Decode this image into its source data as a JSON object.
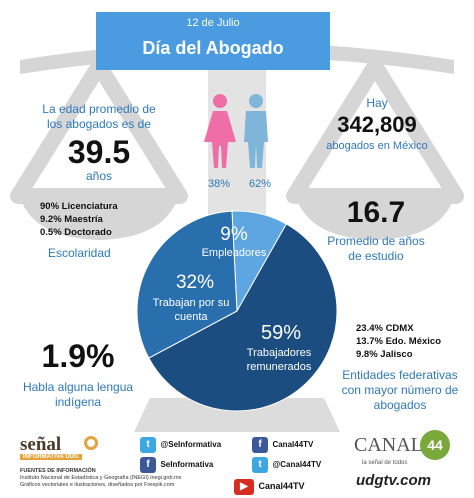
{
  "header": {
    "date": "12 de Julio",
    "title": "Día del Abogado"
  },
  "left_stat": {
    "intro": "La edad promedio de los abogados es de",
    "value": "39.5",
    "unit": "años"
  },
  "right_stat": {
    "intro": "Hay",
    "value": "342,809",
    "unit": "abogados en México"
  },
  "gender": {
    "female_pct": "38%",
    "male_pct": "62%",
    "female_color": "#ef6ea8",
    "male_color": "#7fb5d8"
  },
  "education": {
    "lines": [
      "90% Licenciatura",
      "9.2% Maestría",
      "0.5% Doctorado"
    ],
    "caption": "Escolaridad"
  },
  "study_years": {
    "value": "16.7",
    "caption_line1": "Promedio de años",
    "caption_line2": "de estudio"
  },
  "pie": {
    "slices": [
      {
        "pct": "9%",
        "label": "Empleadores",
        "value": 9,
        "color": "#5ea6e2"
      },
      {
        "pct": "32%",
        "label": "Trabajan por su cuenta",
        "value": 32,
        "color": "#2a6fad"
      },
      {
        "pct": "59%",
        "label": "Trabajadores remunerados",
        "value": 59,
        "color": "#1c4d80"
      }
    ]
  },
  "states": {
    "lines": [
      "23.4% CDMX",
      "13.7% Edo. México",
      "9.8% Jalisco"
    ],
    "caption": "Entidades federativas con mayor número de abogados"
  },
  "indigenous": {
    "value": "1.9%",
    "caption": "Habla alguna lengua indígena"
  },
  "footer": {
    "logo_left": "señal",
    "logo_left_sub": "INFORMATIVA UDG",
    "sources_title": "FUENTES DE INFORMACIÓN",
    "sources_line1": "Instituto Nacional de Estadística y Geografía (INEGI) inegi.gob.mx",
    "sources_line2": "Gráficos vectoriales e ilustraciones, diseñados por Freepik.com",
    "social": [
      {
        "icon": "twitter-icon",
        "text": "@SeInformativa"
      },
      {
        "icon": "facebook-icon",
        "text": "Canal44TV"
      },
      {
        "icon": "facebook-icon",
        "text": "SeInformativa"
      },
      {
        "icon": "twitter-icon",
        "text": "@Canal44TV"
      },
      {
        "icon": "youtube-icon",
        "text": "Canal44TV"
      }
    ],
    "logo_right": "CANAL",
    "logo_right_num": "44",
    "logo_right_tag": "la señal de todos",
    "site": "udgtv.com"
  }
}
